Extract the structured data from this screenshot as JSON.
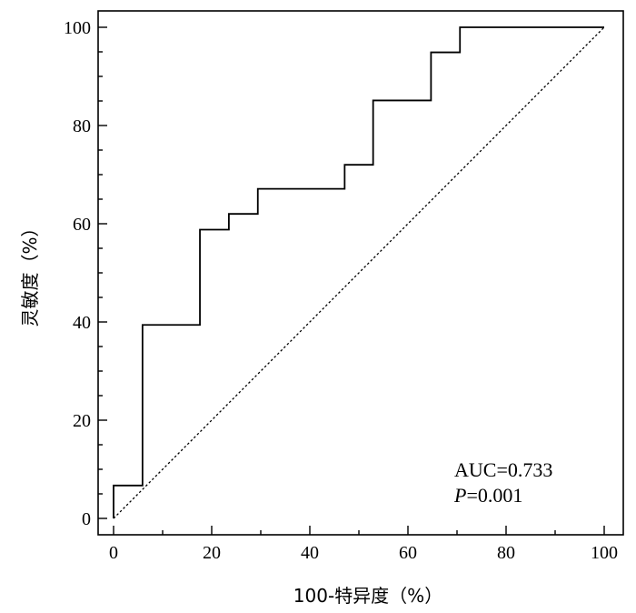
{
  "chart_data": {
    "type": "line",
    "xlabel": "100-特异度（%）",
    "ylabel": "灵敏度（%）",
    "xlim": [
      0,
      100
    ],
    "ylim": [
      0,
      100
    ],
    "x_ticks": [
      0,
      20,
      40,
      60,
      80,
      100
    ],
    "y_ticks": [
      0,
      20,
      40,
      60,
      80,
      100
    ],
    "x_tick_labels": [
      "0",
      "20",
      "40",
      "60",
      "80",
      "100"
    ],
    "y_tick_labels": [
      "0",
      "20",
      "40",
      "60",
      "80",
      "100"
    ],
    "grid": false,
    "series": [
      {
        "style": "step-solid",
        "x": [
          0,
          0,
          5.9,
          5.9,
          17.6,
          17.6,
          23.5,
          23.5,
          29.4,
          29.4,
          47.1,
          47.1,
          52.9,
          52.9,
          64.7,
          64.7,
          70.6,
          70.6,
          100
        ],
        "y": [
          0,
          6.7,
          6.7,
          39.4,
          39.4,
          58.8,
          58.8,
          62.0,
          62.0,
          67.1,
          67.1,
          72.0,
          72.0,
          85.1,
          85.1,
          94.9,
          94.9,
          100,
          100
        ]
      },
      {
        "style": "reference-dotted",
        "x": [
          0,
          100
        ],
        "y": [
          0,
          100
        ]
      }
    ],
    "annotations": {
      "auc": "AUC=0.733",
      "p_symbol": "P",
      "p_value": "=0.001"
    }
  }
}
